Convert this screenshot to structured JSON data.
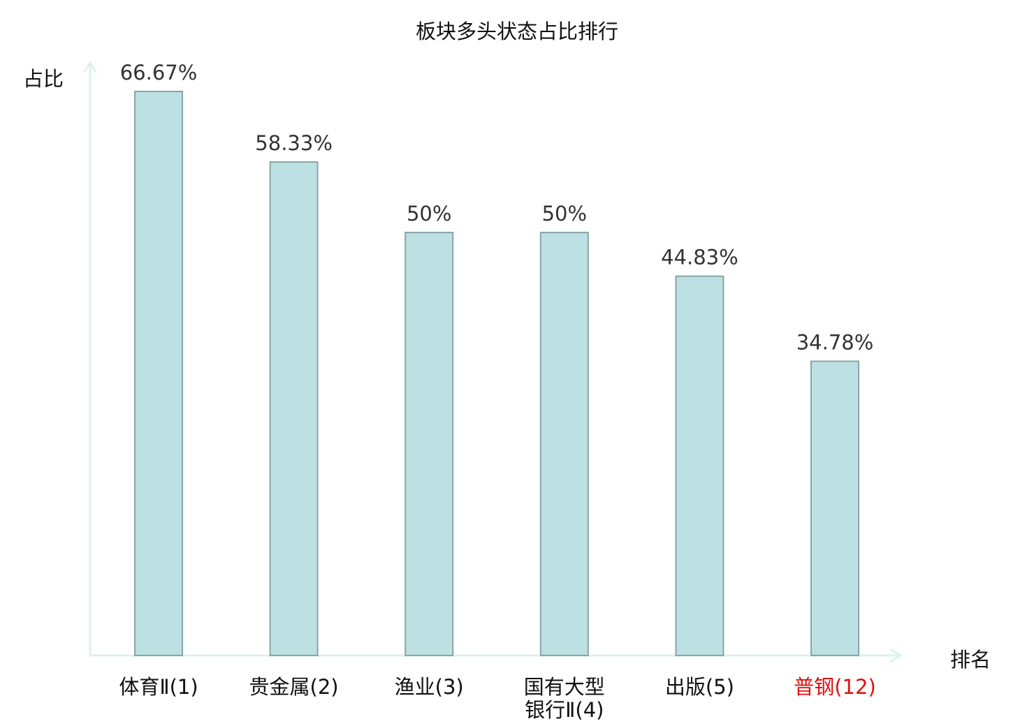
{
  "chart_data": {
    "type": "bar",
    "title": "板块多头状态占比排行",
    "ylabel": "占比",
    "xlabel": "排名",
    "categories": [
      {
        "name": "体育Ⅱ",
        "rank": "(1)",
        "lines": [
          "体育Ⅱ(1)"
        ],
        "highlight": false
      },
      {
        "name": "贵金属",
        "rank": "(2)",
        "lines": [
          "贵金属(2)"
        ],
        "highlight": false
      },
      {
        "name": "渔业",
        "rank": "(3)",
        "lines": [
          "渔业(3)"
        ],
        "highlight": false
      },
      {
        "name": "国有大型银行Ⅱ",
        "rank": "(4)",
        "lines": [
          "国有大型",
          "银行Ⅱ(4)"
        ],
        "highlight": false
      },
      {
        "name": "出版",
        "rank": "(5)",
        "lines": [
          "出版(5)"
        ],
        "highlight": false
      },
      {
        "name": "普钢",
        "rank": "(12)",
        "lines": [
          "普钢(12)"
        ],
        "highlight": true
      }
    ],
    "values": [
      66.67,
      58.33,
      50,
      50,
      44.83,
      34.78
    ],
    "value_labels": [
      "66.67%",
      "58.33%",
      "50%",
      "50%",
      "44.83%",
      "34.78%"
    ],
    "unit": "%",
    "ylim": [
      0,
      70
    ],
    "grid": false,
    "legend": "none",
    "colors": {
      "bar_fill": "#bde0e3",
      "bar_stroke": "#86a6a9",
      "axis": "#dff1ee",
      "text": "#111111",
      "value_text": "#333333",
      "highlight_text": "#e01010"
    }
  }
}
